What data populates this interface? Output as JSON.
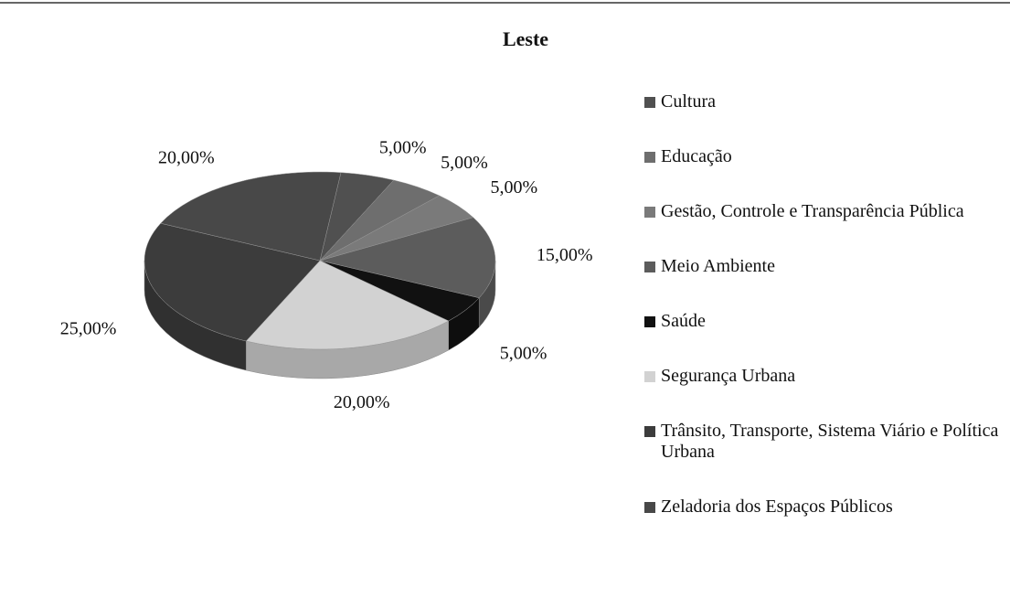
{
  "chart_data": {
    "type": "pie",
    "title": "Leste",
    "categories": [
      "Cultura",
      "Educação",
      "Gestão, Controle e Transparência Pública",
      "Meio Ambiente",
      "Saúde",
      "Segurança Urbana",
      "Trânsito, Transporte, Sistema Viário e Política Urbana",
      "Zeladoria dos Espaços Públicos"
    ],
    "values": [
      5,
      5,
      5,
      15,
      5,
      20,
      25,
      20
    ],
    "value_labels": [
      "5,00%",
      "5,00%",
      "5,00%",
      "15,00%",
      "5,00%",
      "20,00%",
      "25,00%",
      "20,00%"
    ],
    "colors": [
      "#505050",
      "#6e6e6e",
      "#7a7a7a",
      "#5c5c5c",
      "#111111",
      "#d2d2d2",
      "#3c3c3c",
      "#484848"
    ],
    "legend": "right"
  }
}
